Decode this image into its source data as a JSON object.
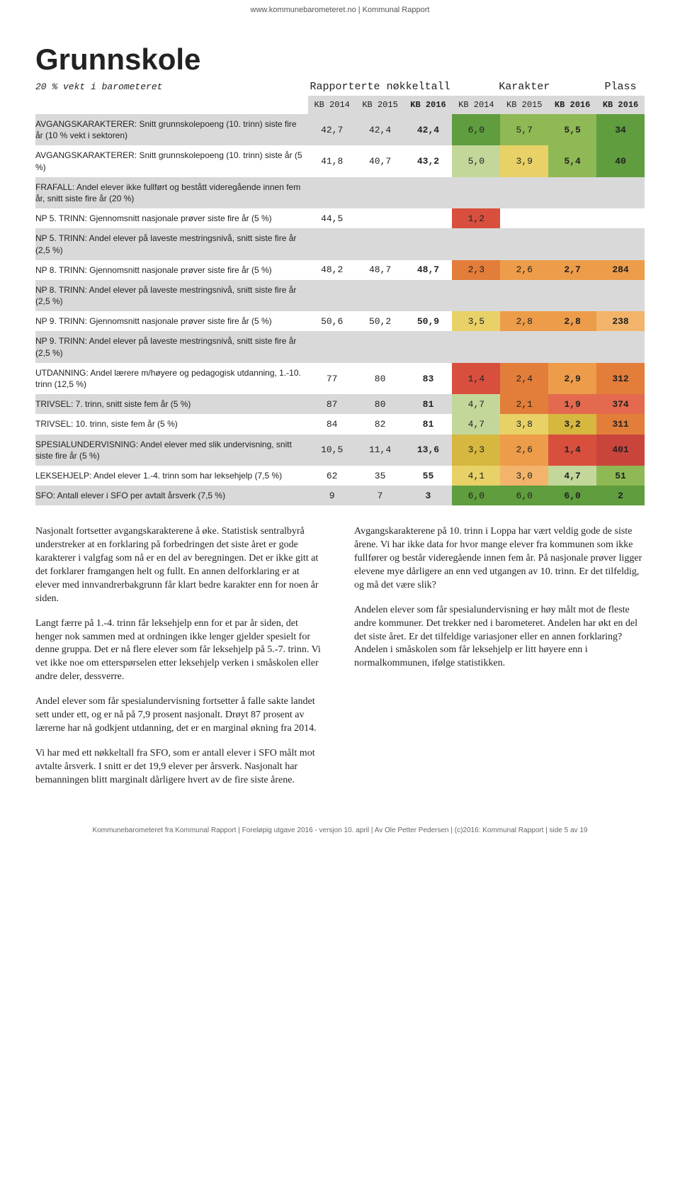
{
  "header_link": "www.kommunebarometeret.no | Kommunal Rapport",
  "title": "Grunnskole",
  "subtitle": "20 % vekt i barometeret",
  "groups": [
    {
      "label": "Rapporterte nøkkeltall",
      "span": 3
    },
    {
      "label": "Karakter",
      "span": 3
    },
    {
      "label": "Plass",
      "span": 1
    }
  ],
  "col_headers": [
    "KB 2014",
    "KB 2015",
    "KB 2016",
    "KB 2014",
    "KB 2015",
    "KB 2016",
    "KB 2016"
  ],
  "colors": {
    "grey": "#d9d9d9",
    "lightgrey": "#ececec",
    "green_dark": "#5f9d3e",
    "green_mid": "#8fb954",
    "green_light": "#c4d79b",
    "yellow_mid": "#e8d267",
    "yellow_dark": "#d6b73f",
    "orange_light": "#f2b46a",
    "orange_mid": "#ed9c4a",
    "orange_dark": "#e37d3a",
    "red_light": "#e46a4f",
    "red_mid": "#d94f3e",
    "red_dark": "#c9453c"
  },
  "rows": [
    {
      "label": "AVGANGSKARAKTERER: Snitt grunnskolepoeng (10. trinn) siste fire år (10 % vekt i sektoren)",
      "bg": "grey",
      "cells": [
        {
          "v": "42,7",
          "c": null
        },
        {
          "v": "42,4",
          "c": null
        },
        {
          "v": "42,4",
          "c": null,
          "b": true
        },
        {
          "v": "6,0",
          "c": "green_dark"
        },
        {
          "v": "5,7",
          "c": "green_mid"
        },
        {
          "v": "5,5",
          "c": "green_mid",
          "b": true
        },
        {
          "v": "34",
          "c": "green_dark",
          "b": true
        }
      ]
    },
    {
      "label": "AVGANGSKARAKTERER: Snitt grunnskolepoeng (10. trinn) siste år (5 %)",
      "bg": null,
      "cells": [
        {
          "v": "41,8",
          "c": null
        },
        {
          "v": "40,7",
          "c": null
        },
        {
          "v": "43,2",
          "c": null,
          "b": true
        },
        {
          "v": "5,0",
          "c": "green_light"
        },
        {
          "v": "3,9",
          "c": "yellow_mid"
        },
        {
          "v": "5,4",
          "c": "green_mid",
          "b": true
        },
        {
          "v": "40",
          "c": "green_dark",
          "b": true
        }
      ]
    },
    {
      "label": "FRAFALL: Andel elever ikke fullført og bestått videregående innen fem år, snitt siste fire år (20 %)",
      "bg": "grey",
      "cells": [
        {
          "v": "",
          "c": null
        },
        {
          "v": "",
          "c": null
        },
        {
          "v": "",
          "c": null
        },
        {
          "v": "",
          "c": null
        },
        {
          "v": "",
          "c": null
        },
        {
          "v": "",
          "c": null
        },
        {
          "v": "",
          "c": null
        }
      ]
    },
    {
      "label": "NP 5. TRINN: Gjennomsnitt nasjonale prøver siste fire år (5 %)",
      "bg": null,
      "cells": [
        {
          "v": "44,5",
          "c": null
        },
        {
          "v": "",
          "c": null
        },
        {
          "v": "",
          "c": null
        },
        {
          "v": "1,2",
          "c": "red_mid"
        },
        {
          "v": "",
          "c": null
        },
        {
          "v": "",
          "c": null
        },
        {
          "v": "",
          "c": null
        }
      ]
    },
    {
      "label": "NP 5. TRINN: Andel elever på laveste mestringsnivå, snitt siste fire år (2,5 %)",
      "bg": "grey",
      "cells": [
        {
          "v": "",
          "c": null
        },
        {
          "v": "",
          "c": null
        },
        {
          "v": "",
          "c": null
        },
        {
          "v": "",
          "c": null
        },
        {
          "v": "",
          "c": null
        },
        {
          "v": "",
          "c": null
        },
        {
          "v": "",
          "c": null
        }
      ]
    },
    {
      "label": "NP 8. TRINN: Gjennomsnitt nasjonale prøver siste fire år (5 %)",
      "bg": null,
      "cells": [
        {
          "v": "48,2",
          "c": null
        },
        {
          "v": "48,7",
          "c": null
        },
        {
          "v": "48,7",
          "c": null,
          "b": true
        },
        {
          "v": "2,3",
          "c": "orange_dark"
        },
        {
          "v": "2,6",
          "c": "orange_mid"
        },
        {
          "v": "2,7",
          "c": "orange_mid",
          "b": true
        },
        {
          "v": "284",
          "c": "orange_mid",
          "b": true
        }
      ]
    },
    {
      "label": "NP 8. TRINN: Andel elever på laveste mestringsnivå, snitt siste fire år (2,5 %)",
      "bg": "grey",
      "cells": [
        {
          "v": "",
          "c": null
        },
        {
          "v": "",
          "c": null
        },
        {
          "v": "",
          "c": null
        },
        {
          "v": "",
          "c": null
        },
        {
          "v": "",
          "c": null
        },
        {
          "v": "",
          "c": null
        },
        {
          "v": "",
          "c": null
        }
      ]
    },
    {
      "label": "NP 9. TRINN: Gjennomsnitt nasjonale prøver siste fire år (5 %)",
      "bg": null,
      "cells": [
        {
          "v": "50,6",
          "c": null
        },
        {
          "v": "50,2",
          "c": null
        },
        {
          "v": "50,9",
          "c": null,
          "b": true
        },
        {
          "v": "3,5",
          "c": "yellow_mid"
        },
        {
          "v": "2,8",
          "c": "orange_mid"
        },
        {
          "v": "2,8",
          "c": "orange_mid",
          "b": true
        },
        {
          "v": "238",
          "c": "orange_light",
          "b": true
        }
      ]
    },
    {
      "label": "NP 9. TRINN: Andel elever på laveste mestringsnivå, snitt siste fire år (2,5 %)",
      "bg": "grey",
      "cells": [
        {
          "v": "",
          "c": null
        },
        {
          "v": "",
          "c": null
        },
        {
          "v": "",
          "c": null
        },
        {
          "v": "",
          "c": null
        },
        {
          "v": "",
          "c": null
        },
        {
          "v": "",
          "c": null
        },
        {
          "v": "",
          "c": null
        }
      ]
    },
    {
      "label": "UTDANNING: Andel lærere m/høyere og pedagogisk utdanning, 1.-10. trinn (12,5 %)",
      "bg": null,
      "cells": [
        {
          "v": "77",
          "c": null
        },
        {
          "v": "80",
          "c": null
        },
        {
          "v": "83",
          "c": null,
          "b": true
        },
        {
          "v": "1,4",
          "c": "red_mid"
        },
        {
          "v": "2,4",
          "c": "orange_dark"
        },
        {
          "v": "2,9",
          "c": "orange_mid",
          "b": true
        },
        {
          "v": "312",
          "c": "orange_dark",
          "b": true
        }
      ]
    },
    {
      "label": "TRIVSEL: 7. trinn, snitt siste fem år (5 %)",
      "bg": "grey",
      "cells": [
        {
          "v": "87",
          "c": null
        },
        {
          "v": "80",
          "c": null
        },
        {
          "v": "81",
          "c": null,
          "b": true
        },
        {
          "v": "4,7",
          "c": "green_light"
        },
        {
          "v": "2,1",
          "c": "orange_dark"
        },
        {
          "v": "1,9",
          "c": "red_light",
          "b": true
        },
        {
          "v": "374",
          "c": "red_light",
          "b": true
        }
      ]
    },
    {
      "label": "TRIVSEL: 10. trinn, siste fem år (5 %)",
      "bg": null,
      "cells": [
        {
          "v": "84",
          "c": null
        },
        {
          "v": "82",
          "c": null
        },
        {
          "v": "81",
          "c": null,
          "b": true
        },
        {
          "v": "4,7",
          "c": "green_light"
        },
        {
          "v": "3,8",
          "c": "yellow_mid"
        },
        {
          "v": "3,2",
          "c": "yellow_dark",
          "b": true
        },
        {
          "v": "311",
          "c": "orange_dark",
          "b": true
        }
      ]
    },
    {
      "label": "SPESIALUNDERVISNING: Andel elever med slik undervisning, snitt siste fire år (5 %)",
      "bg": "grey",
      "cells": [
        {
          "v": "10,5",
          "c": null
        },
        {
          "v": "11,4",
          "c": null
        },
        {
          "v": "13,6",
          "c": null,
          "b": true
        },
        {
          "v": "3,3",
          "c": "yellow_dark"
        },
        {
          "v": "2,6",
          "c": "orange_mid"
        },
        {
          "v": "1,4",
          "c": "red_mid",
          "b": true
        },
        {
          "v": "401",
          "c": "red_dark",
          "b": true
        }
      ]
    },
    {
      "label": "LEKSEHJELP: Andel elever 1.-4. trinn som har leksehjelp (7,5 %)",
      "bg": null,
      "cells": [
        {
          "v": "62",
          "c": null
        },
        {
          "v": "35",
          "c": null
        },
        {
          "v": "55",
          "c": null,
          "b": true
        },
        {
          "v": "4,1",
          "c": "yellow_mid"
        },
        {
          "v": "3,0",
          "c": "orange_light"
        },
        {
          "v": "4,7",
          "c": "green_light",
          "b": true
        },
        {
          "v": "51",
          "c": "green_mid",
          "b": true
        }
      ]
    },
    {
      "label": "SFO: Antall elever i SFO per avtalt årsverk (7,5 %)",
      "bg": "grey",
      "cells": [
        {
          "v": "9",
          "c": null
        },
        {
          "v": "7",
          "c": null
        },
        {
          "v": "3",
          "c": null,
          "b": true
        },
        {
          "v": "6,0",
          "c": "green_dark"
        },
        {
          "v": "6,0",
          "c": "green_dark"
        },
        {
          "v": "6,0",
          "c": "green_dark",
          "b": true
        },
        {
          "v": "2",
          "c": "green_dark",
          "b": true
        }
      ]
    }
  ],
  "paras_left": [
    "Nasjonalt fortsetter avgangskarakterene å øke. Statistisk sentralbyrå understreker at en forklaring på forbedringen det siste året er gode karakterer i valgfag som nå er en del av beregningen. Det er ikke gitt at det forklarer framgangen helt og fullt. En annen delforklaring er at elever med innvandrerbakgrunn får klart bedre karakter enn for noen år siden.",
    "Langt færre på 1.-4. trinn får leksehjelp enn for et par år siden, det henger nok sammen med at ordningen ikke lenger gjelder spesielt for denne gruppa. Det er nå flere elever som får leksehjelp på 5.-7. trinn. Vi vet ikke noe om etterspørselen etter leksehjelp verken i småskolen eller andre deler, dessverre.",
    "Andel elever som får spesialundervisning fortsetter å falle sakte landet sett under ett, og er nå på 7,9 prosent nasjonalt. Drøyt 87 prosent av lærerne har nå godkjent utdanning, det er en marginal økning fra 2014.",
    "Vi har med ett nøkkeltall fra SFO, som er antall elever i SFO målt mot avtalte årsverk. I snitt er det 19,9 elever per årsverk. Nasjonalt har bemanningen blitt marginalt dårligere hvert av de fire siste årene."
  ],
  "paras_right": [
    "Avgangskarakterene på 10. trinn i Loppa har vært veldig gode de siste årene. Vi har ikke data for hvor mange elever fra kommunen som ikke fullfører og består videregående innen fem år. På nasjonale prøver ligger elevene mye dårligere an enn ved utgangen av 10. trinn. Er det tilfeldig, og må det være slik?",
    "Andelen elever som får spesialundervisning er høy målt mot de fleste andre kommuner. Det trekker ned i barometeret. Andelen har økt en del det siste året. Er det tilfeldige variasjoner eller en annen forklaring? Andelen i småskolen som får leksehjelp er litt høyere enn i normalkommunen, ifølge statistikken."
  ],
  "footer": "Kommunebarometeret fra Kommunal Rapport | Foreløpig utgave 2016 - versjon 10. april | Av Ole Petter Pedersen | (c)2016: Kommunal Rapport | side 5 av 19"
}
